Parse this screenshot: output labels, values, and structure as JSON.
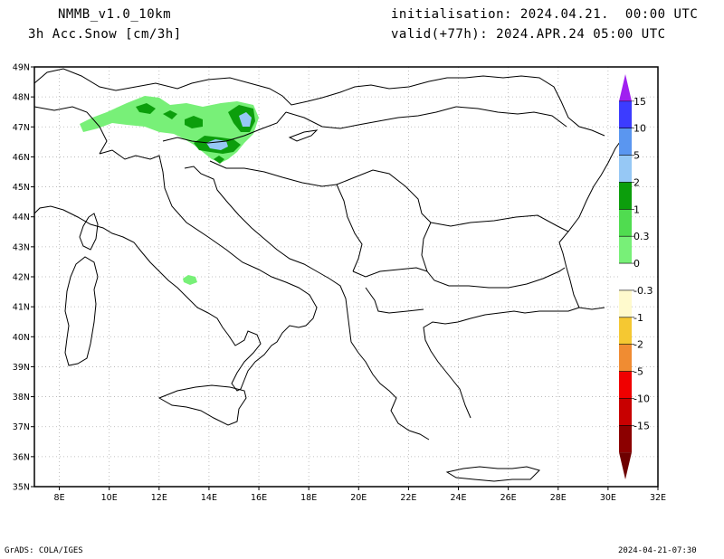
{
  "header": {
    "model": "NMMB_v1.0_10km",
    "field": "3h Acc.Snow [cm/3h]",
    "init": "initialisation: 2024.04.21.  00:00 UTC",
    "valid": "valid(+77h): 2024.APR.24 05:00 UTC"
  },
  "footer": {
    "left": "GrADS: COLA/IGES",
    "right": "2024-04-21-07:30"
  },
  "map": {
    "lon_range": [
      7,
      32
    ],
    "lat_range": [
      35,
      49
    ],
    "x_ticks": [
      "8E",
      "10E",
      "12E",
      "14E",
      "16E",
      "18E",
      "20E",
      "22E",
      "24E",
      "26E",
      "28E",
      "30E",
      "32E"
    ],
    "y_ticks": [
      "35N",
      "36N",
      "37N",
      "38N",
      "39N",
      "40N",
      "41N",
      "42N",
      "43N",
      "44N",
      "45N",
      "46N",
      "47N",
      "48N",
      "49N"
    ],
    "grid": "dotted"
  },
  "colorbar": {
    "levels": [
      "15",
      "10",
      "5",
      "2",
      "1",
      "0.3",
      "0",
      "-0.3",
      "-1",
      "-2",
      "-5",
      "-10",
      "-15"
    ],
    "colors": [
      "#a020f0",
      "#3c3cff",
      "#5a96f0",
      "#96c8f5",
      "#0c9e0c",
      "#50dc50",
      "#78f078",
      "#ffffff",
      "#fffacd",
      "#f5c832",
      "#f08c32",
      "#f00000",
      "#c80000",
      "#8c0000",
      "#6e0000"
    ]
  },
  "snow_colors": {
    "light": "#78f078",
    "medium": "#0c9e0c",
    "heavy": "#96c8f5"
  }
}
